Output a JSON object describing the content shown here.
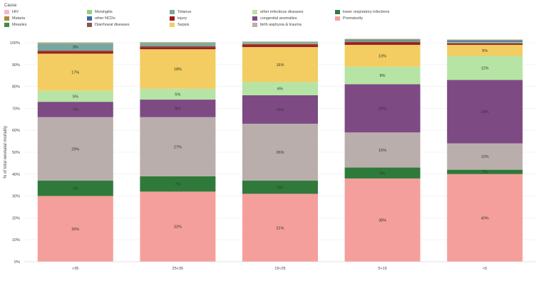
{
  "chart_data": {
    "type": "bar",
    "stacked": true,
    "legend_title": "Cause",
    "ylabel": "% of total neonatal mortality",
    "ylim": [
      0,
      100
    ],
    "yticks": [
      "0%",
      "10%",
      "20%",
      "30%",
      "40%",
      "50%",
      "60%",
      "70%",
      "80%",
      "90%",
      "100%"
    ],
    "categories": [
      ">35",
      "25<35",
      "15<25",
      "5<15",
      "<5"
    ],
    "legend": [
      {
        "name": "HIV",
        "color": "#f5b8c8"
      },
      {
        "name": "Meningitis",
        "color": "#8fd17c"
      },
      {
        "name": "Tetanus",
        "color": "#78a6a0"
      },
      {
        "name": "other infectious diseases",
        "color": "#b6e4a4"
      },
      {
        "name": "lower respiratory infections",
        "color": "#2f7a3a"
      },
      {
        "name": "Malaria",
        "color": "#a88a3c"
      },
      {
        "name": "other NCDs",
        "color": "#3f68a8"
      },
      {
        "name": "injury",
        "color": "#9e1b1b"
      },
      {
        "name": "congenital anomalies",
        "color": "#7d4a84"
      },
      {
        "name": "Prematurity",
        "color": "#f59f9c"
      },
      {
        "name": "Measles",
        "color": "#3f8f3a"
      },
      {
        "name": "Diarrhoeal diseases",
        "color": "#8a5648"
      },
      {
        "name": "Sepsis",
        "color": "#f3cd61"
      },
      {
        "name": "birth asphyxia & trauma",
        "color": "#b9aeac"
      }
    ],
    "series": [
      {
        "name": "Prematurity",
        "color": "#f59f9c",
        "values": [
          30,
          32,
          31,
          38,
          40
        ],
        "labels": [
          "30%",
          "32%",
          "31%",
          "38%",
          "40%"
        ]
      },
      {
        "name": "lower respiratory infections",
        "color": "#2f7a3a",
        "values": [
          7,
          7,
          6,
          5,
          2
        ],
        "labels": [
          "7%",
          "7%",
          "6%",
          "5%",
          "2%"
        ]
      },
      {
        "name": "birth asphyxia & trauma",
        "color": "#b9aeac",
        "values": [
          29,
          27,
          26,
          16,
          12
        ],
        "labels": [
          "29%",
          "27%",
          "26%",
          "16%",
          "12%"
        ]
      },
      {
        "name": "congenital anomalies",
        "color": "#7d4a84",
        "values": [
          7,
          8,
          13,
          22,
          29
        ],
        "labels": [
          "7%",
          "8%",
          "13%",
          "22%",
          "29%"
        ]
      },
      {
        "name": "other infectious diseases",
        "color": "#b6e4a4",
        "values": [
          5,
          5,
          6,
          8,
          11
        ],
        "labels": [
          "5%",
          "5%",
          "6%",
          "8%",
          "11%"
        ]
      },
      {
        "name": "Sepsis",
        "color": "#f3cd61",
        "values": [
          17,
          18,
          16,
          10,
          5
        ],
        "labels": [
          "17%",
          "18%",
          "16%",
          "10%",
          "5%"
        ]
      },
      {
        "name": "injury",
        "color": "#9e1b1b",
        "values": [
          1,
          1,
          1,
          1,
          0.5
        ],
        "labels": [
          "",
          "",
          "",
          "",
          ""
        ]
      },
      {
        "name": "Diarrhoeal diseases",
        "color": "#8a5648",
        "values": [
          0.5,
          0.4,
          0.4,
          0.5,
          0.3
        ],
        "labels": [
          "",
          "",
          "",
          "",
          ""
        ]
      },
      {
        "name": "Tetanus",
        "color": "#78a6a0",
        "values": [
          3,
          1.2,
          0.5,
          0.3,
          0.3
        ],
        "labels": [
          "3%",
          "",
          "",
          "",
          ""
        ]
      },
      {
        "name": "Meningitis",
        "color": "#8fd17c",
        "values": [
          0.1,
          0.1,
          0.1,
          0.2,
          0.3
        ],
        "labels": [
          "",
          "",
          "",
          "",
          ""
        ]
      },
      {
        "name": "other NCDs",
        "color": "#3f68a8",
        "values": [
          0.1,
          0.1,
          0.1,
          0.3,
          0.6
        ],
        "labels": [
          "",
          "",
          "",
          "",
          ""
        ]
      },
      {
        "name": "Malaria",
        "color": "#a88a3c",
        "values": [
          0.2,
          0.2,
          0.2,
          0.2,
          0.2
        ],
        "labels": [
          "",
          "",
          "",
          "",
          ""
        ]
      },
      {
        "name": "HIV",
        "color": "#f5b8c8",
        "values": [
          0.1,
          0.1,
          0.1,
          0.1,
          0.1
        ],
        "labels": [
          "",
          "",
          "",
          "",
          ""
        ]
      },
      {
        "name": "Measles",
        "color": "#3f8f3a",
        "values": [
          0.1,
          0.1,
          0.1,
          0.1,
          0.1
        ],
        "labels": [
          "",
          "",
          "",
          "",
          ""
        ]
      }
    ]
  }
}
